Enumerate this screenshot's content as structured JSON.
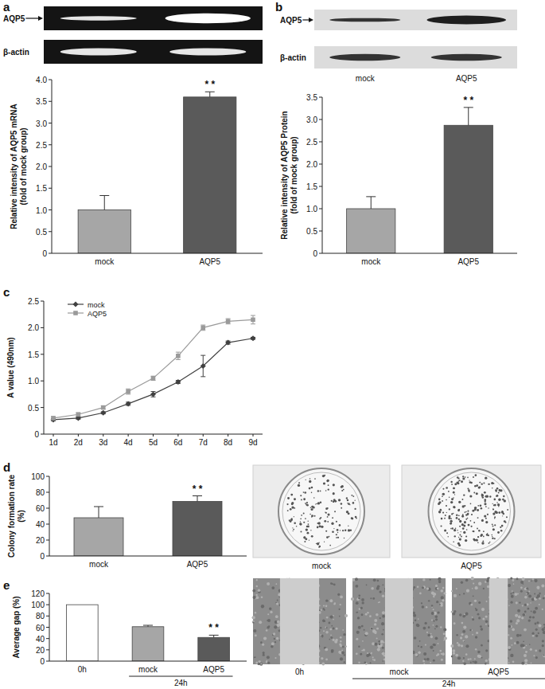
{
  "chart_data": [
    {
      "panel": "a",
      "type": "bar",
      "blot_rows": [
        "AQP5",
        "β-actin"
      ],
      "y_label": [
        "Relative intensity of AQP5 mRNA",
        "(fold of mock group)"
      ],
      "categories": [
        "mock",
        "AQP5"
      ],
      "values": [
        1.0,
        3.6
      ],
      "errors": [
        0.33,
        0.12
      ],
      "colors": [
        "#a6a6a6",
        "#5a5a5a"
      ],
      "significance": [
        null,
        "* *"
      ],
      "ylim": [
        0,
        4
      ],
      "yticks": [
        0,
        0.5,
        {
          "value": 1,
          "label": "1.0"
        },
        1.5,
        {
          "value": 2,
          "label": "2.0"
        },
        2.5,
        {
          "value": 3,
          "label": "3.0"
        },
        3.5,
        {
          "value": 4,
          "label": "4.0"
        }
      ]
    },
    {
      "panel": "b",
      "type": "bar",
      "blot_rows": [
        "AQP5",
        "β-actin"
      ],
      "blot_lanes": [
        "mock",
        "AQP5"
      ],
      "y_label": [
        "Relative intensity of AQP5 Protein",
        "(fold of mock group)"
      ],
      "categories": [
        "mock",
        "AQP5"
      ],
      "values": [
        1.0,
        2.87
      ],
      "errors": [
        0.27,
        0.4
      ],
      "colors": [
        "#a6a6a6",
        "#5a5a5a"
      ],
      "significance": [
        null,
        "* *"
      ],
      "ylim": [
        0,
        3.5
      ],
      "yticks": [
        0,
        0.5,
        {
          "value": 1,
          "label": "1.0"
        },
        1.5,
        {
          "value": 2,
          "label": "2.0"
        },
        2.5,
        {
          "value": 3,
          "label": "3.0"
        },
        3.5
      ]
    },
    {
      "panel": "c",
      "type": "line",
      "y_label": "A value (490nm)",
      "categories": [
        "1d",
        "2d",
        "3d",
        "4d",
        "5d",
        "6d",
        "7d",
        "8d",
        "9d"
      ],
      "series": [
        {
          "name": "mock",
          "color": "#404040",
          "marker": "diamond",
          "values": [
            0.27,
            0.3,
            0.4,
            0.57,
            0.75,
            0.98,
            1.28,
            1.72,
            1.8
          ],
          "errors": [
            0.02,
            0.02,
            0.02,
            0.03,
            0.05,
            0.03,
            0.2,
            0.03,
            0.02
          ]
        },
        {
          "name": "AQP5",
          "color": "#9a9a9a",
          "marker": "square",
          "values": [
            0.3,
            0.37,
            0.5,
            0.8,
            1.05,
            1.47,
            2.0,
            2.12,
            2.15
          ],
          "errors": [
            0.03,
            0.03,
            0.03,
            0.05,
            0.04,
            0.07,
            0.05,
            0.05,
            0.08
          ]
        }
      ],
      "legend": "upper left",
      "ylim": [
        0,
        2.5
      ],
      "yticks": [
        0,
        0.5,
        {
          "value": 1,
          "label": "1.0"
        },
        1.5,
        {
          "value": 2,
          "label": "2.0"
        },
        2.5
      ]
    },
    {
      "panel": "d",
      "type": "bar",
      "y_label": [
        "Colony formation rate",
        "(%)"
      ],
      "categories": [
        "mock",
        "AQP5"
      ],
      "values": [
        48,
        68.5
      ],
      "errors": [
        14,
        7
      ],
      "colors": [
        "#a6a6a6",
        "#5a5a5a"
      ],
      "significance": [
        null,
        "* *"
      ],
      "image_labels": [
        "mock",
        "AQP5"
      ],
      "ylim": [
        0,
        100
      ],
      "yticks": [
        0,
        20,
        40,
        60,
        80,
        100
      ]
    },
    {
      "panel": "e",
      "type": "bar",
      "y_label": "Average gap (%)",
      "categories": [
        "0h",
        "mock",
        "AQP5"
      ],
      "values": [
        100,
        61,
        42
      ],
      "errors": [
        null,
        2.5,
        4
      ],
      "colors": [
        "#ffffff",
        "#a6a6a6",
        "#5a5a5a"
      ],
      "significance": [
        null,
        null,
        "* *"
      ],
      "group_label": "24h",
      "image_labels": [
        "0h",
        "mock",
        "AQP5"
      ],
      "image_group_label": "24h",
      "ylim": [
        0,
        120
      ],
      "yticks": [
        0,
        20,
        40,
        60,
        80,
        100,
        120
      ]
    }
  ]
}
